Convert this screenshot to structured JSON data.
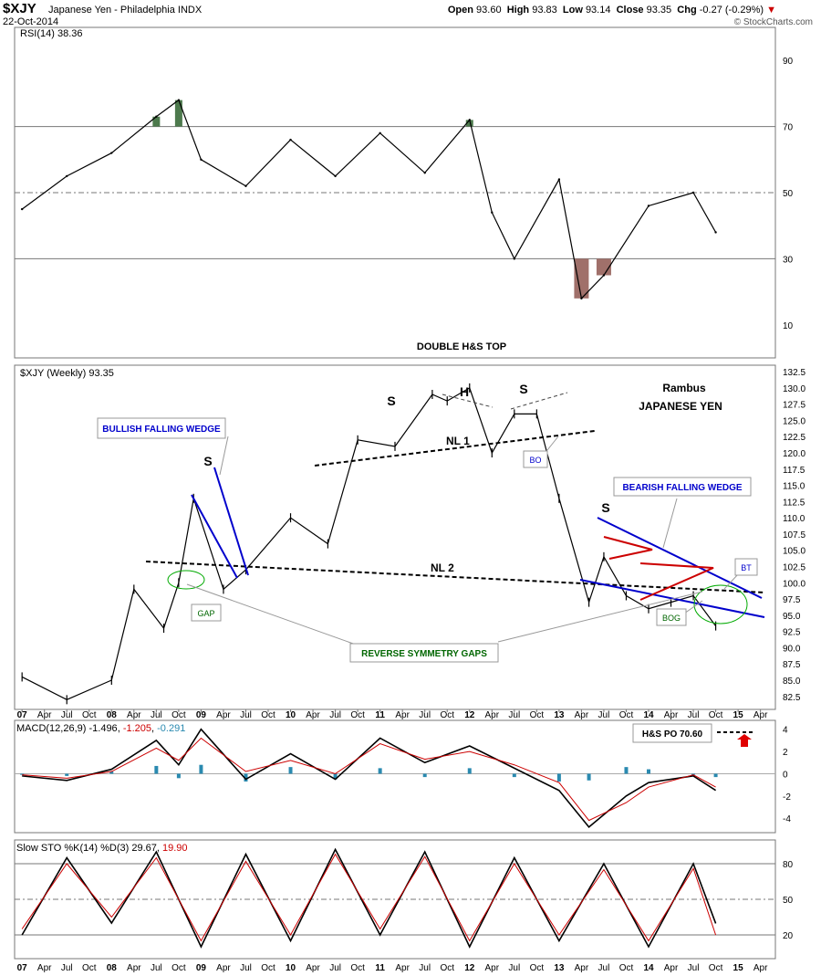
{
  "header": {
    "symbol": "$XJY",
    "name": "Japanese Yen - Philadelphia INDX",
    "date": "22-Oct-2014",
    "open_label": "Open",
    "open": "93.60",
    "high_label": "High",
    "high": "93.83",
    "low_label": "Low",
    "low": "93.14",
    "close_label": "Close",
    "close": "93.35",
    "chg_label": "Chg",
    "chg": "-0.27 (-0.29%)",
    "copyright": "© StockCharts.com"
  },
  "colors": {
    "neckline": "#000000",
    "wedge": "#0000cc",
    "triangle": "#cc0000",
    "gap": "#00aa00",
    "oversold_fill": "#a0706a",
    "overbought_fill": "#4d7a4d",
    "macd_hist": "#2a8ab0",
    "signal": "#cc0000",
    "annot_green": "#006600"
  },
  "chart_data": [
    {
      "type": "line",
      "panel": "RSI",
      "legend": "RSI(14) 38.36",
      "y_ticks": [
        90,
        70,
        50,
        30,
        10
      ],
      "ylim": [
        0,
        100
      ],
      "reference_lines": [
        70,
        50,
        30
      ],
      "x": [
        "2007-01",
        "2007-07",
        "2008-01",
        "2008-07",
        "2008-10",
        "2009-01",
        "2009-07",
        "2010-01",
        "2010-07",
        "2011-01",
        "2011-07",
        "2012-01",
        "2012-04",
        "2012-07",
        "2013-01",
        "2013-04",
        "2013-07",
        "2014-01",
        "2014-07",
        "2014-10"
      ],
      "values": [
        45,
        55,
        62,
        73,
        78,
        60,
        52,
        66,
        55,
        68,
        56,
        72,
        44,
        30,
        54,
        18,
        25,
        46,
        50,
        38
      ]
    },
    {
      "type": "ohlc",
      "panel": "Price",
      "legend": "$XJY (Weekly) 93.35",
      "y_ticks": [
        132.5,
        130.0,
        127.5,
        125.0,
        122.5,
        120.0,
        117.5,
        115.0,
        112.5,
        110.0,
        107.5,
        105.0,
        102.5,
        100.0,
        97.5,
        95.0,
        92.5,
        90.0,
        87.5,
        85.0,
        82.5
      ],
      "ylim": [
        80.5,
        133.5
      ],
      "x": [
        "2007-01",
        "2007-07",
        "2008-01",
        "2008-04",
        "2008-08",
        "2008-10",
        "2008-12",
        "2009-04",
        "2009-07",
        "2010-01",
        "2010-06",
        "2010-10",
        "2011-03",
        "2011-08",
        "2011-10",
        "2012-01",
        "2012-04",
        "2012-07",
        "2012-10",
        "2013-01",
        "2013-05",
        "2013-07",
        "2013-10",
        "2014-01",
        "2014-04",
        "2014-07",
        "2014-10"
      ],
      "values": [
        85.5,
        82.0,
        85.0,
        99.0,
        93.0,
        100.0,
        113.0,
        99.0,
        102.0,
        110.0,
        106.0,
        122.0,
        121.0,
        129.0,
        128.0,
        130.0,
        120.0,
        126.0,
        126.0,
        113.0,
        97.0,
        104.0,
        98.0,
        96.0,
        97.0,
        98.0,
        93.35
      ]
    },
    {
      "type": "line",
      "panel": "MACD",
      "legend_prefix": "MACD(12,26,9) ",
      "legend_macd": "-1.496",
      "legend_signal": "-1.205",
      "legend_hist": "-0.291",
      "y_ticks": [
        4,
        2,
        0,
        -2,
        -4
      ],
      "ylim": [
        -5.3,
        4.8
      ],
      "x": [
        "2007-01",
        "2007-07",
        "2008-01",
        "2008-07",
        "2008-10",
        "2009-01",
        "2009-07",
        "2010-01",
        "2010-07",
        "2011-01",
        "2011-07",
        "2012-01",
        "2012-07",
        "2013-01",
        "2013-05",
        "2013-10",
        "2014-01",
        "2014-07",
        "2014-10"
      ],
      "series": [
        {
          "name": "MACD",
          "values": [
            -0.2,
            -0.6,
            0.4,
            3.0,
            0.8,
            4.0,
            -0.5,
            1.8,
            -0.5,
            3.2,
            1.0,
            2.5,
            0.5,
            -1.5,
            -4.8,
            -2.0,
            -0.8,
            -0.2,
            -1.5
          ]
        },
        {
          "name": "Signal",
          "values": [
            -0.1,
            -0.4,
            0.2,
            2.3,
            1.2,
            3.2,
            0.2,
            1.2,
            0.0,
            2.7,
            1.3,
            2.0,
            0.8,
            -0.8,
            -4.2,
            -2.6,
            -1.2,
            -0.1,
            -1.2
          ]
        }
      ]
    },
    {
      "type": "line",
      "panel": "Slow STO",
      "legend_prefix": "Slow STO %K(14) %D(3) ",
      "legend_k": "29.67",
      "legend_d": "19.90",
      "y_ticks": [
        80,
        50,
        20
      ],
      "ylim": [
        0,
        100
      ],
      "reference_lines": [
        80,
        50,
        20
      ],
      "x": [
        "2007-01",
        "2007-07",
        "2008-01",
        "2008-07",
        "2009-01",
        "2009-07",
        "2010-01",
        "2010-07",
        "2011-01",
        "2011-07",
        "2012-01",
        "2012-07",
        "2013-01",
        "2013-07",
        "2014-01",
        "2014-07",
        "2014-10"
      ],
      "series": [
        {
          "name": "%K",
          "values": [
            20,
            85,
            30,
            90,
            10,
            88,
            15,
            92,
            20,
            90,
            10,
            85,
            15,
            80,
            10,
            80,
            29.67
          ]
        },
        {
          "name": "%D",
          "values": [
            25,
            80,
            35,
            85,
            15,
            82,
            20,
            88,
            25,
            86,
            15,
            80,
            20,
            75,
            15,
            76,
            19.9
          ]
        }
      ]
    }
  ],
  "x_axis_labels": [
    "07",
    "Apr",
    "Jul",
    "Oct",
    "08",
    "Apr",
    "Jul",
    "Oct",
    "09",
    "Apr",
    "Jul",
    "Oct",
    "10",
    "Apr",
    "Jul",
    "Oct",
    "11",
    "Apr",
    "Jul",
    "Oct",
    "12",
    "Apr",
    "Jul",
    "Oct",
    "13",
    "Apr",
    "Jul",
    "Oct",
    "14",
    "Apr",
    "Jul",
    "Oct",
    "15",
    "Apr"
  ],
  "annotations": {
    "double_hs_top": "DOUBLE H&S TOP",
    "h": "H",
    "s_left": "S",
    "s_right": "S",
    "s_2009": "S",
    "s_2013": "S",
    "nl1": "NL 1",
    "nl2": "NL 2",
    "bo": "BO",
    "bog": "BOG",
    "bt": "BT",
    "gap": "GAP",
    "bullish_wedge": "BULLISH FALLING WEDGE",
    "bearish_wedge": "BEARISH FALLING WEDGE",
    "reverse_gaps": "REVERSE SYMMETRY GAPS",
    "rambus": "Rambus",
    "japanese_yen": "JAPANESE YEN",
    "hs_po": "H&S PO 70.60"
  }
}
